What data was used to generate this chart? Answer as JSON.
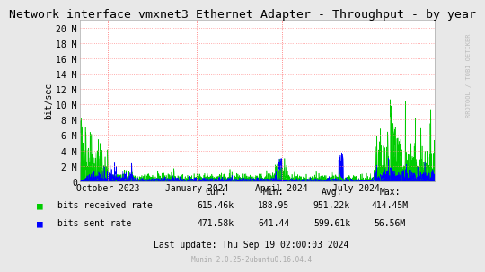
{
  "title": "Network interface vmxnet3 Ethernet Adapter - Throughput - by year",
  "ylabel": "bit/sec",
  "background_color": "#e8e8e8",
  "plot_bg_color": "#ffffff",
  "grid_color": "#ff8888",
  "y_ticks": [
    0,
    2000000,
    4000000,
    6000000,
    8000000,
    10000000,
    12000000,
    14000000,
    16000000,
    18000000,
    20000000
  ],
  "y_tick_labels": [
    "0",
    "2 M",
    "4 M",
    "6 M",
    "8 M",
    "10 M",
    "12 M",
    "14 M",
    "16 M",
    "18 M",
    "20 M"
  ],
  "ylim": [
    0,
    21000000
  ],
  "x_tick_labels": [
    "October 2023",
    "January 2024",
    "April 2024",
    "July 2024"
  ],
  "x_tick_positions": [
    0.08,
    0.33,
    0.57,
    0.78
  ],
  "recv_color": "#00cc00",
  "sent_color": "#0000ff",
  "legend_recv": "bits received rate",
  "legend_sent": "bits sent rate",
  "stats_cur_label": "Cur:",
  "stats_min_label": "Min:",
  "stats_avg_label": "Avg:",
  "stats_max_label": "Max:",
  "cur_received": "615.46k",
  "cur_sent": "471.58k",
  "min_received": "188.95",
  "min_sent": "641.44",
  "avg_received": "951.22k",
  "avg_sent": "599.61k",
  "max_received": "414.45M",
  "max_sent": "56.56M",
  "last_update": "Last update: Thu Sep 19 02:00:03 2024",
  "munin_version": "Munin 2.0.25-2ubuntu0.16.04.4",
  "rrdtool_label": "RRDTOOL / TOBI OETIKER"
}
